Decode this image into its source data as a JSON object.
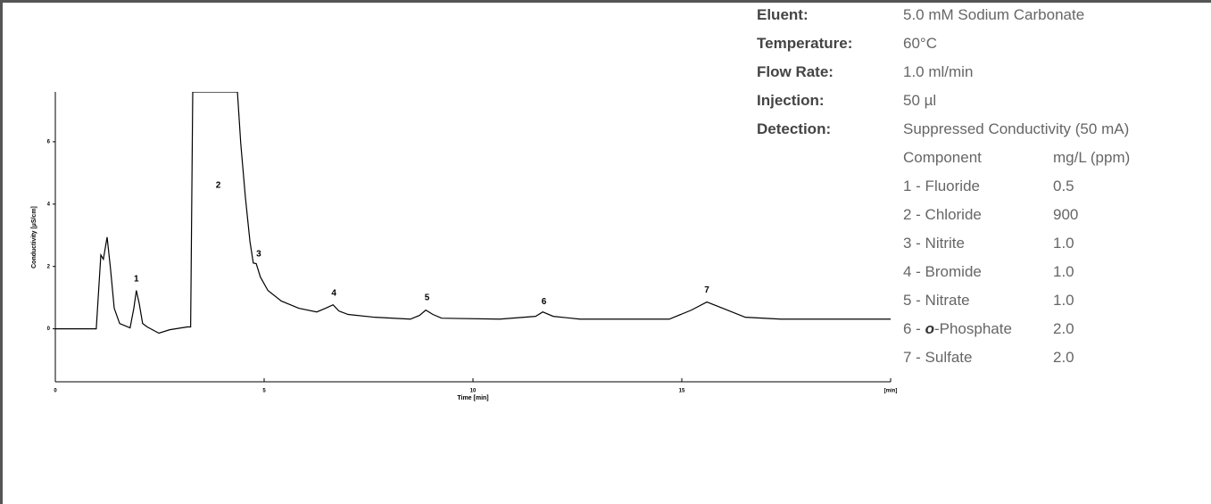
{
  "chart_data": {
    "type": "line",
    "xlabel": "Time [min]",
    "ylabel": "Conductivity [µS/cm]",
    "xlim": [
      0,
      20
    ],
    "ylim": [
      -1.7,
      7.6
    ],
    "xticks": [
      0,
      5,
      10,
      15,
      {
        "value": 20,
        "label": "[min]"
      }
    ],
    "yticks": [
      0,
      2,
      4,
      6
    ],
    "color": "#000000",
    "x": [
      0,
      0.98,
      1.09,
      1.15,
      1.24,
      1.32,
      1.41,
      1.54,
      1.79,
      1.88,
      1.94,
      2.01,
      2.09,
      2.2,
      2.48,
      2.74,
      3.16,
      3.24,
      3.29,
      4.36,
      4.44,
      4.55,
      4.66,
      4.74,
      4.81,
      4.91,
      5.09,
      5.41,
      5.83,
      6.26,
      6.47,
      6.65,
      6.79,
      7.01,
      7.65,
      8.5,
      8.72,
      8.87,
      9.04,
      9.25,
      10.64,
      11.5,
      11.67,
      11.92,
      12.56,
      14.7,
      15.23,
      15.6,
      15.98,
      16.52,
      17.37,
      20
    ],
    "values": [
      0,
      0,
      2.37,
      2.23,
      2.94,
      1.94,
      0.66,
      0.17,
      0.03,
      0.66,
      1.23,
      0.8,
      0.17,
      0.06,
      -0.14,
      -0.03,
      0.06,
      0.06,
      7.6,
      7.6,
      5.94,
      4.23,
      2.8,
      2.11,
      2.09,
      1.66,
      1.23,
      0.89,
      0.66,
      0.54,
      0.66,
      0.77,
      0.57,
      0.46,
      0.37,
      0.31,
      0.43,
      0.6,
      0.46,
      0.34,
      0.31,
      0.4,
      0.54,
      0.4,
      0.31,
      0.31,
      0.6,
      0.86,
      0.66,
      0.37,
      0.31,
      0.31
    ],
    "annotations": [
      {
        "text": "1",
        "x": 1.94,
        "y": 1.6
      },
      {
        "text": "2",
        "x": 3.9,
        "y": 4.6
      },
      {
        "text": "3",
        "x": 4.87,
        "y": 2.4
      },
      {
        "text": "4",
        "x": 6.67,
        "y": 1.14
      },
      {
        "text": "5",
        "x": 8.9,
        "y": 1.0
      },
      {
        "text": "6",
        "x": 11.7,
        "y": 0.86
      },
      {
        "text": "7",
        "x": 15.6,
        "y": 1.23
      }
    ]
  },
  "conditions": [
    {
      "label": "Eluent:",
      "value": "5.0 mM Sodium Carbonate"
    },
    {
      "label": "Temperature:",
      "value": "60°C"
    },
    {
      "label": "Flow Rate:",
      "value": "1.0 ml/min"
    },
    {
      "label": "Injection:",
      "value": "50 µl"
    },
    {
      "label": "Detection:",
      "value": "Suppressed Conductivity (50 mA)"
    }
  ],
  "components": {
    "header": [
      "Component",
      "mg/L (ppm)"
    ],
    "rows": [
      {
        "name": [
          "1 - Fluoride"
        ],
        "amount": "0.5"
      },
      {
        "name": [
          "2 - Chloride"
        ],
        "amount": "900"
      },
      {
        "name": [
          "3 - Nitrite"
        ],
        "amount": "1.0"
      },
      {
        "name": [
          "4 - Bromide"
        ],
        "amount": "1.0"
      },
      {
        "name": [
          "5 - Nitrate"
        ],
        "amount": "1.0"
      },
      {
        "name": [
          "6 - ",
          "o",
          "-Phosphate"
        ],
        "amount": "2.0"
      },
      {
        "name": [
          "7 - Sulfate"
        ],
        "amount": "2.0"
      }
    ]
  }
}
